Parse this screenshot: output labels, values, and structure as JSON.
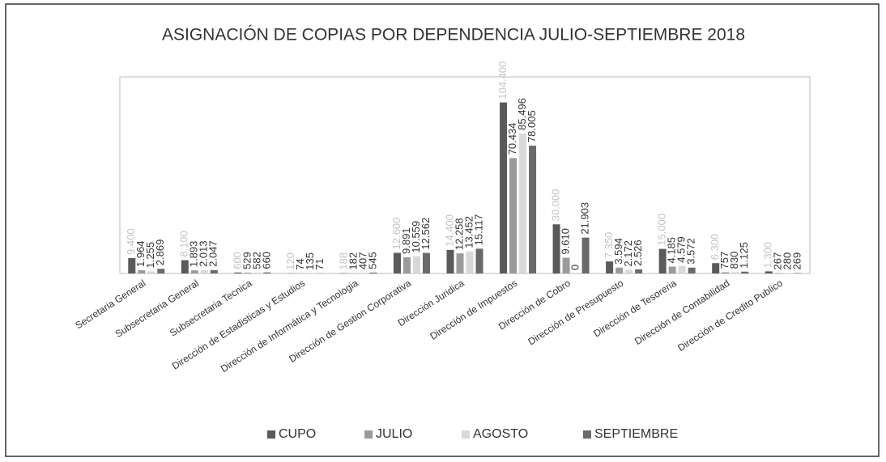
{
  "chart_data": {
    "type": "bar",
    "title": "ASIGNACIÓN DE COPIAS POR DEPENDENCIA JULIO-SEPTIEMBRE 2018",
    "categories": [
      "Secretaria General",
      "Subsecretaria General",
      "Subsecretaria Tecnica",
      "Dirección de Estadisticas y Estudios",
      "Dirección de Informática y Tecnologia",
      "Dirección de Gestion Corporativa",
      "Dirección Juridica",
      "Dirección de Impuestos",
      "Dirección de Cobro",
      "Dirección de Presupuesto",
      "Dirección de Tesoreria",
      "Dirección de Contabilidad",
      "Dirección de Credito Publico"
    ],
    "ylim": [
      0,
      120000
    ],
    "legend": "bottom",
    "series": [
      {
        "name": "CUPO",
        "color": "#5a5a5a",
        "label_color": "#c4c4c4",
        "values": [
          9400,
          8100,
          600,
          120,
          188,
          12600,
          14400,
          104400,
          30000,
          7350,
          15000,
          6300,
          1300
        ],
        "value_labels": [
          "9.400",
          "8.100",
          "600",
          "120",
          "188",
          "12.600",
          "14.400",
          "104.400",
          "30.000",
          "7.350",
          "15.000",
          "6.300",
          "1.300"
        ]
      },
      {
        "name": "JULIO",
        "color": "#9a9a9a",
        "label_color": "#333333",
        "values": [
          1964,
          1893,
          529,
          74,
          182,
          9891,
          12258,
          70434,
          9610,
          3594,
          4185,
          757,
          267
        ],
        "value_labels": [
          "1.964",
          "1.893",
          "529",
          "74",
          "182",
          "9.891",
          "12.258",
          "70.434",
          "9.610",
          "3.594",
          "4.185",
          "757",
          "267"
        ]
      },
      {
        "name": "AGOSTO",
        "color": "#d8d8d8",
        "label_color": "#333333",
        "values": [
          1255,
          2013,
          582,
          135,
          407,
          10559,
          13452,
          85496,
          0,
          2172,
          4579,
          830,
          280
        ],
        "value_labels": [
          "1.255",
          "2.013",
          "582",
          "135",
          "407",
          "10.559",
          "13.452",
          "85.496",
          "0",
          "2.172",
          "4.579",
          "830",
          "280"
        ]
      },
      {
        "name": "SEPTIEMBRE",
        "color": "#6a6a6a",
        "label_color": "#333333",
        "values": [
          2869,
          2047,
          660,
          71,
          545,
          12562,
          15117,
          78005,
          21903,
          2526,
          3572,
          1125,
          269
        ],
        "value_labels": [
          "2.869",
          "2.047",
          "660",
          "71",
          "545",
          "12.562",
          "15.117",
          "78.005",
          "21.903",
          "2.526",
          "3.572",
          "1.125",
          "269"
        ]
      }
    ]
  }
}
